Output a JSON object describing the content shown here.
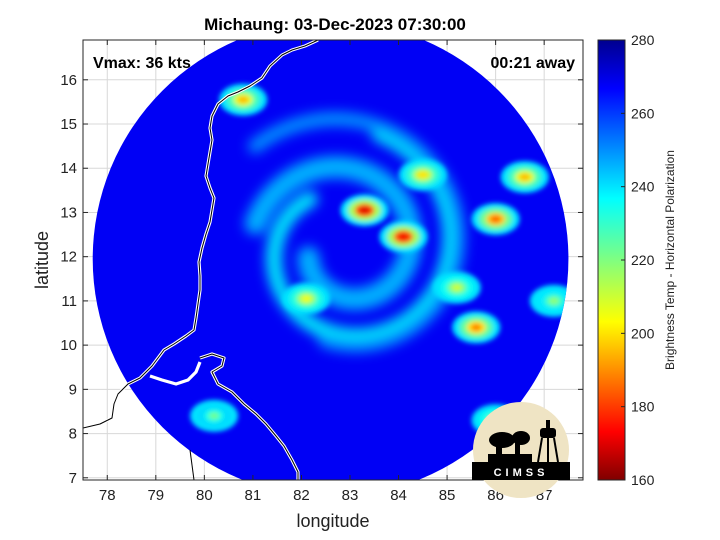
{
  "chart_data": {
    "type": "heatmap",
    "title": "Michaung: 03-Dec-2023 07:30:00",
    "xlabel": "longitude",
    "ylabel": "latitude",
    "xlim": [
      77.5,
      87.8
    ],
    "ylim": [
      6.95,
      16.9
    ],
    "xticks": [
      78,
      79,
      80,
      81,
      82,
      83,
      84,
      85,
      86,
      87
    ],
    "yticks": [
      7,
      8,
      9,
      10,
      11,
      12,
      13,
      14,
      15,
      16
    ],
    "grid": true,
    "annotations": {
      "vmax": "Vmax: 36 kts",
      "time_offset": "00:21 away"
    },
    "colorbar": {
      "label": "Brightness Temp - Horizontal Polarization",
      "range": [
        160,
        280
      ],
      "ticks": [
        160,
        180,
        200,
        220,
        240,
        260,
        280
      ],
      "colormap": "jet"
    },
    "swath_center": [
      82.6,
      11.95
    ],
    "swath_radius_deg": 4.9,
    "background_temp": 268,
    "cold_cores": [
      {
        "lon": 83.3,
        "lat": 13.05,
        "temp": 170
      },
      {
        "lon": 84.1,
        "lat": 12.45,
        "temp": 172
      },
      {
        "lon": 86.0,
        "lat": 12.85,
        "temp": 185
      },
      {
        "lon": 85.6,
        "lat": 10.4,
        "temp": 188
      },
      {
        "lon": 84.5,
        "lat": 13.85,
        "temp": 200
      },
      {
        "lon": 80.8,
        "lat": 15.55,
        "temp": 195
      },
      {
        "lon": 82.1,
        "lat": 11.05,
        "temp": 205
      },
      {
        "lon": 86.6,
        "lat": 13.8,
        "temp": 195
      },
      {
        "lon": 85.2,
        "lat": 11.3,
        "temp": 210
      },
      {
        "lon": 86.0,
        "lat": 8.3,
        "temp": 210
      },
      {
        "lon": 87.2,
        "lat": 11.0,
        "temp": 218
      },
      {
        "lon": 80.2,
        "lat": 8.4,
        "temp": 222
      }
    ],
    "logo": "CIMSS"
  }
}
